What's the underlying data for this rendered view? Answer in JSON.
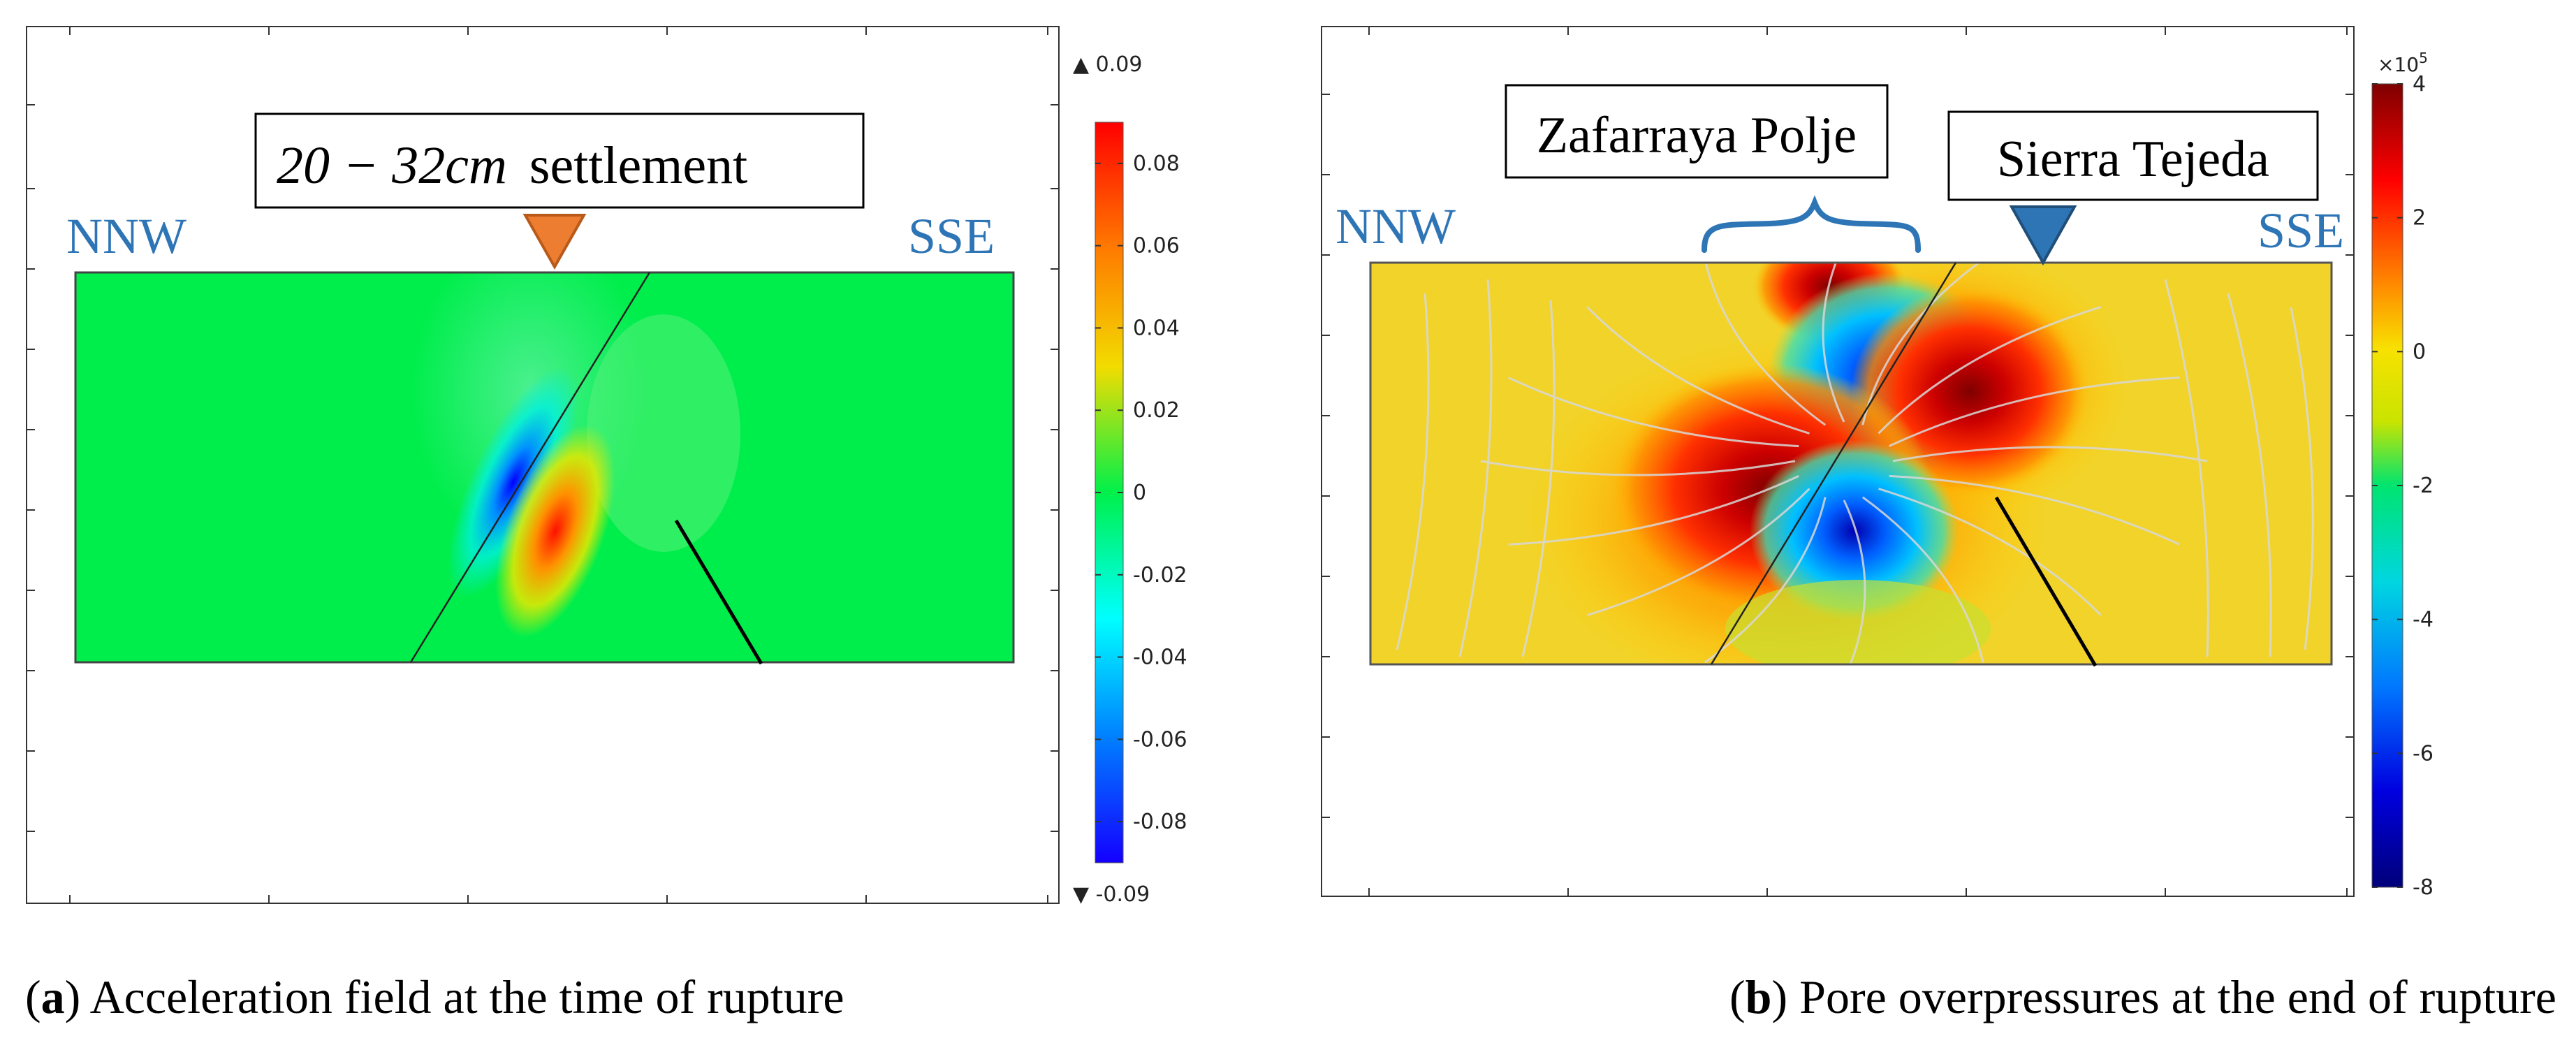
{
  "figure": {
    "caption_a": {
      "letter": "a",
      "text": "Acceleration field at the time of rupture"
    },
    "caption_b": {
      "letter": "b",
      "text": "Pore overpressures at the end of rupture"
    }
  },
  "chart_data": [
    {
      "type": "heatmap",
      "id": "a",
      "title": "Acceleration field at the time of rupture",
      "colormap": "rainbow",
      "colorbar": {
        "min": -0.09,
        "max": 0.09,
        "ticks": [
          0.08,
          0.06,
          0.04,
          0.02,
          0,
          -0.02,
          -0.04,
          -0.06,
          -0.08
        ],
        "tick_labels": [
          "0.08",
          "0.06",
          "0.04",
          "0.02",
          "0",
          "-0.02",
          "-0.04",
          "-0.06",
          "-0.08"
        ],
        "max_label": "▲ 0.09",
        "min_label": "▼ -0.09"
      },
      "labels": {
        "left": "NNW",
        "right": "SSE"
      },
      "annotation": {
        "math": "20 − 32cm",
        "text": "settlement",
        "marker_color": "#ed7d31"
      },
      "background_value": 0,
      "features": [
        "inclined fault with opposite-sign acceleration lobes",
        "secondary fault trace"
      ]
    },
    {
      "type": "heatmap",
      "id": "b",
      "title": "Pore overpressures at the end of rupture",
      "colormap": "jet",
      "colorbar": {
        "min": -8,
        "max": 4,
        "multiplier": "×10",
        "multiplier_exp": "5",
        "ticks": [
          4,
          2,
          0,
          -2,
          -4,
          -6,
          -8
        ],
        "tick_labels": [
          "4",
          "2",
          "0",
          "-2",
          "-4",
          "-6",
          "-8"
        ]
      },
      "labels": {
        "left": "NNW",
        "right": "SSE"
      },
      "annotations": [
        {
          "text": "Zafarraya Polje",
          "marker": "brace"
        },
        {
          "text": "Sierra Tejeda",
          "marker": "triangle",
          "marker_color": "#2e75b6"
        }
      ],
      "background_value": 0,
      "features": [
        "alternating positive/negative pore-pressure lobes along fault",
        "flow streamlines",
        "secondary fault trace"
      ]
    }
  ]
}
